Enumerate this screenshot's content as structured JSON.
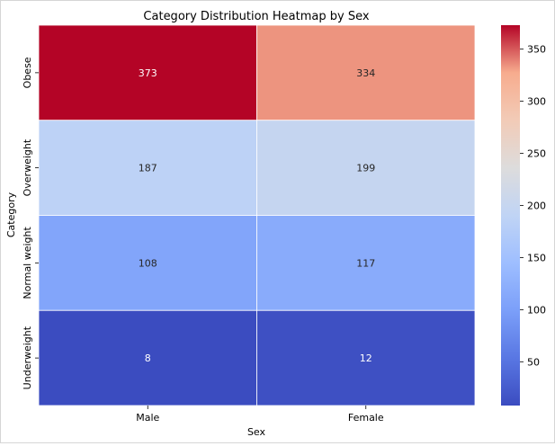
{
  "chart_data": {
    "type": "heatmap",
    "title": "Category Distribution Heatmap by Sex",
    "xlabel": "Sex",
    "ylabel": "Category",
    "x_categories": [
      "Male",
      "Female"
    ],
    "y_categories": [
      "Obese",
      "Overweight",
      "Normal weight",
      "Underweight"
    ],
    "values": [
      [
        373,
        334
      ],
      [
        187,
        199
      ],
      [
        108,
        117
      ],
      [
        8,
        12
      ]
    ],
    "colormap": "coolwarm",
    "vmin": 8,
    "vmax": 373,
    "colorbar_ticks": [
      50,
      100,
      150,
      200,
      250,
      300,
      350
    ],
    "colorbar_tick_labels": [
      "50",
      "100",
      "150",
      "200",
      "250",
      "300",
      "350"
    ],
    "annotation_colors": {
      "light": "#ffffff",
      "dark": "#262626"
    }
  }
}
